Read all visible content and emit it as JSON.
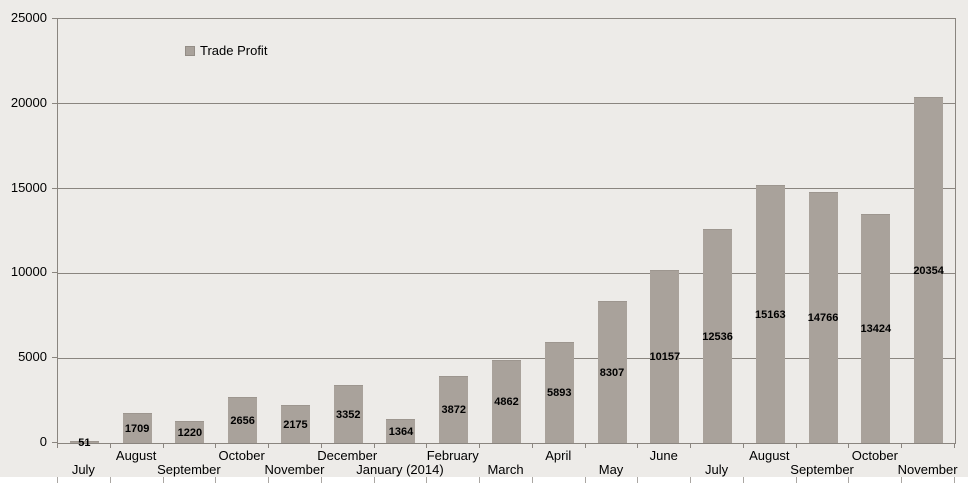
{
  "legend": {
    "label": "Trade Profit"
  },
  "colors": {
    "background": "#edebe8",
    "bar": "#a9a29b",
    "grid": "#8a857f",
    "text": "#000000"
  },
  "chart_data": {
    "type": "bar",
    "title": "",
    "xlabel": "",
    "ylabel": "",
    "categories": [
      "July",
      "August",
      "September",
      "October",
      "November",
      "December",
      "January (2014)",
      "February",
      "March",
      "April",
      "May",
      "June",
      "July",
      "August",
      "September",
      "October",
      "November"
    ],
    "values": [
      51,
      1709,
      1220,
      2656,
      2175,
      3352,
      1364,
      3872,
      4862,
      5893,
      8307,
      10157,
      12536,
      15163,
      14766,
      13424,
      20354
    ],
    "series_name": "Trade Profit",
    "ylim": [
      0,
      25000
    ],
    "yticks": [
      0,
      5000,
      10000,
      15000,
      20000,
      25000
    ],
    "grid": true,
    "legend_position": "inside-top-left",
    "data_labels": "inside-center",
    "x_label_layout": "staggered-two-rows"
  }
}
